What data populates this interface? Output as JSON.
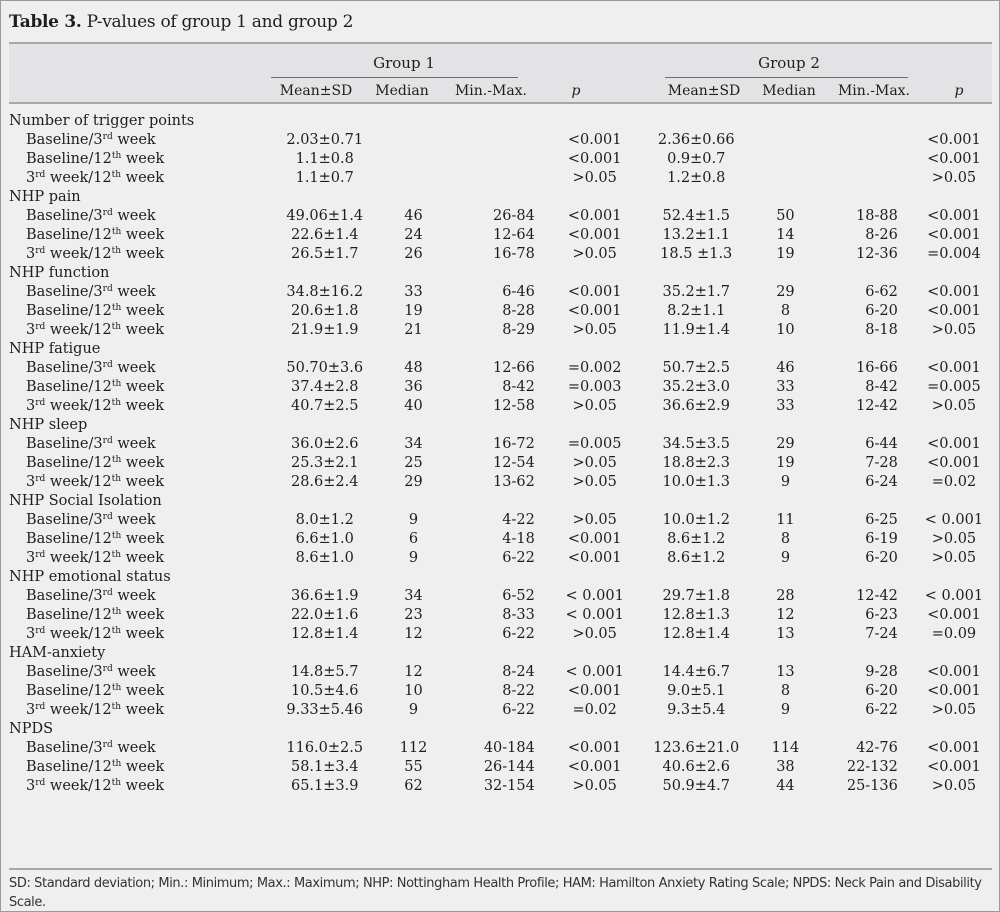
{
  "title": {
    "bold": "Table 3.",
    "text": " P-values of group 1 and group 2"
  },
  "groups": [
    "Group 1",
    "Group 2"
  ],
  "columns": [
    "Mean±SD",
    "Median",
    "Min.-Max.",
    "p",
    "Mean±SD",
    "Median",
    "Min.-Max.",
    "p"
  ],
  "row_labels": {
    "b3": [
      "Baseline/3",
      "rd",
      " week"
    ],
    "b12": [
      "Baseline/12",
      "th",
      " week"
    ],
    "w3_12": [
      "3",
      "rd",
      " week/12",
      "th",
      " week"
    ]
  },
  "sections": [
    {
      "name": "Number of trigger points",
      "rows": [
        {
          "label": "b3",
          "values": [
            "2.03±0.71",
            "",
            "",
            "<0.001",
            "2.36±0.66",
            "",
            "",
            "<0.001"
          ]
        },
        {
          "label": "b12",
          "values": [
            "1.1±0.8",
            "",
            "",
            "<0.001",
            "0.9±0.7",
            "",
            "",
            "<0.001"
          ]
        },
        {
          "label": "w3_12",
          "values": [
            "1.1±0.7",
            "",
            "",
            ">0.05",
            "1.2±0.8",
            "",
            "",
            ">0.05"
          ]
        }
      ]
    },
    {
      "name": "NHP pain",
      "rows": [
        {
          "label": "b3",
          "values": [
            "49.06±1.4",
            "46",
            "26-84",
            "<0.001",
            "52.4±1.5",
            "50",
            "18-88",
            "<0.001"
          ]
        },
        {
          "label": "b12",
          "values": [
            "22.6±1.4",
            "24",
            "12-64",
            "<0.001",
            "13.2±1.1",
            "14",
            "8-26",
            "<0.001"
          ]
        },
        {
          "label": "w3_12",
          "values": [
            "26.5±1.7",
            "26",
            "16-78",
            ">0.05",
            "18.5 ±1.3",
            "19",
            "12-36",
            "=0.004"
          ]
        }
      ]
    },
    {
      "name": "NHP function",
      "rows": [
        {
          "label": "b3",
          "values": [
            "34.8±16.2",
            "33",
            "6-46",
            "<0.001",
            "35.2±1.7",
            "29",
            "6-62",
            "<0.001"
          ]
        },
        {
          "label": "b12",
          "values": [
            "20.6±1.8",
            "19",
            "8-28",
            "<0.001",
            "8.2±1.1",
            "8",
            "6-20",
            "<0.001"
          ]
        },
        {
          "label": "w3_12",
          "values": [
            "21.9±1.9",
            "21",
            "8-29",
            ">0.05",
            "11.9±1.4",
            "10",
            "8-18",
            ">0.05"
          ]
        }
      ]
    },
    {
      "name": "NHP fatigue",
      "rows": [
        {
          "label": "b3",
          "values": [
            "50.70±3.6",
            "48",
            "12-66",
            "=0.002",
            "50.7±2.5",
            "46",
            "16-66",
            "<0.001"
          ]
        },
        {
          "label": "b12",
          "values": [
            "37.4±2.8",
            "36",
            "8-42",
            "=0.003",
            "35.2±3.0",
            "33",
            "8-42",
            "=0.005"
          ]
        },
        {
          "label": "w3_12",
          "values": [
            "40.7±2.5",
            "40",
            "12-58",
            ">0.05",
            "36.6±2.9",
            "33",
            "12-42",
            ">0.05"
          ]
        }
      ]
    },
    {
      "name": "NHP sleep",
      "rows": [
        {
          "label": "b3",
          "values": [
            "36.0±2.6",
            "34",
            "16-72",
            "=0.005",
            "34.5±3.5",
            "29",
            "6-44",
            "<0.001"
          ]
        },
        {
          "label": "b12",
          "values": [
            "25.3±2.1",
            "25",
            "12-54",
            ">0.05",
            "18.8±2.3",
            "19",
            "7-28",
            "<0.001"
          ]
        },
        {
          "label": "w3_12",
          "values": [
            "28.6±2.4",
            "29",
            "13-62",
            ">0.05",
            "10.0±1.3",
            "9",
            "6-24",
            "=0.02"
          ]
        }
      ]
    },
    {
      "name": "NHP Social Isolation",
      "rows": [
        {
          "label": "b3",
          "values": [
            "8.0±1.2",
            "9",
            "4-22",
            ">0.05",
            "10.0±1.2",
            "11",
            "6-25",
            "< 0.001"
          ]
        },
        {
          "label": "b12",
          "values": [
            "6.6±1.0",
            "6",
            "4-18",
            "<0.001",
            "8.6±1.2",
            "8",
            "6-19",
            ">0.05"
          ]
        },
        {
          "label": "w3_12",
          "values": [
            "8.6±1.0",
            "9",
            "6-22",
            "<0.001",
            "8.6±1.2",
            "9",
            "6-20",
            ">0.05"
          ]
        }
      ]
    },
    {
      "name": "NHP emotional status",
      "rows": [
        {
          "label": "b3",
          "values": [
            "36.6±1.9",
            "34",
            "6-52",
            "< 0.001",
            "29.7±1.8",
            "28",
            "12-42",
            "< 0.001"
          ]
        },
        {
          "label": "b12",
          "values": [
            "22.0±1.6",
            "23",
            "8-33",
            "< 0.001",
            "12.8±1.3",
            "12",
            "6-23",
            "<0.001"
          ]
        },
        {
          "label": "w3_12",
          "values": [
            "12.8±1.4",
            "12",
            "6-22",
            ">0.05",
            "12.8±1.4",
            "13",
            "7-24",
            "=0.09"
          ]
        }
      ]
    },
    {
      "name": "HAM-anxiety",
      "rows": [
        {
          "label": "b3",
          "values": [
            "14.8±5.7",
            "12",
            "8-24",
            "< 0.001",
            "14.4±6.7",
            "13",
            "9-28",
            "<0.001"
          ]
        },
        {
          "label": "b12",
          "values": [
            "10.5±4.6",
            "10",
            "8-22",
            "<0.001",
            "9.0±5.1",
            "8",
            "6-20",
            "<0.001"
          ]
        },
        {
          "label": "w3_12",
          "values": [
            "9.33±5.46",
            "9",
            "6-22",
            "=0.02",
            "9.3±5.4",
            "9",
            "6-22",
            ">0.05"
          ]
        }
      ]
    },
    {
      "name": "NPDS",
      "rows": [
        {
          "label": "b3",
          "values": [
            "116.0±2.5",
            "112",
            "40-184",
            "<0.001",
            "123.6±21.0",
            "114",
            "42-76",
            "<0.001"
          ]
        },
        {
          "label": "b12",
          "values": [
            "58.1±3.4",
            "55",
            "26-144",
            "<0.001",
            "40.6±2.6",
            "38",
            "22-132",
            "<0.001"
          ]
        },
        {
          "label": "w3_12",
          "values": [
            "65.1±3.9",
            "62",
            "32-154",
            ">0.05",
            "50.9±4.7",
            "44",
            "25-136",
            ">0.05"
          ]
        }
      ]
    }
  ],
  "footnote": "SD: Standard deviation; Min.: Minimum; Max.: Maximum; NHP: Nottingham Health Profile; HAM: Hamilton Anxiety Rating Scale; NPDS: Neck Pain and Disability Scale."
}
